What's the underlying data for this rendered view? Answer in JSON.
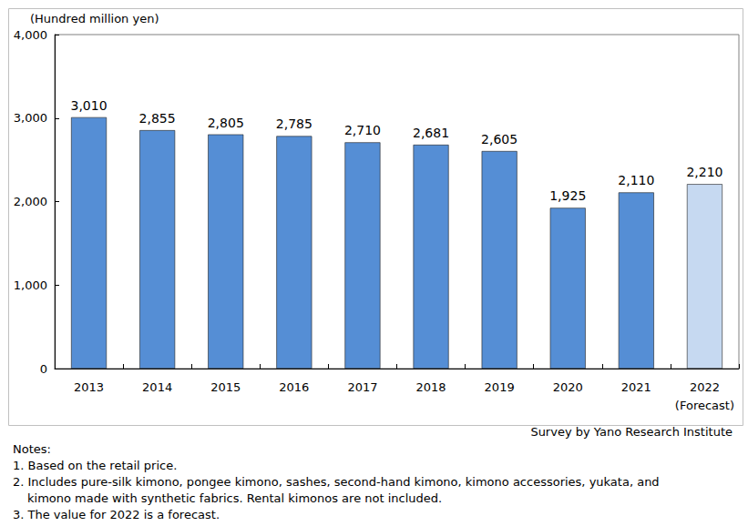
{
  "chart_data": {
    "type": "bar",
    "ylabel": "(Hundred million yen)",
    "categories": [
      "2013",
      "2014",
      "2015",
      "2016",
      "2017",
      "2018",
      "2019",
      "2020",
      "2021",
      "2022\n(Forecast)"
    ],
    "values": [
      3010,
      2855,
      2805,
      2785,
      2710,
      2681,
      2605,
      1925,
      2110,
      2210
    ],
    "value_labels": [
      "3,010",
      "2,855",
      "2,805",
      "2,785",
      "2,710",
      "2,681",
      "2,605",
      "1,925",
      "2,110",
      "2,210"
    ],
    "colors": [
      "#558ed5",
      "#558ed5",
      "#558ed5",
      "#558ed5",
      "#558ed5",
      "#558ed5",
      "#558ed5",
      "#558ed5",
      "#558ed5",
      "#c6d9f1"
    ],
    "ylim": [
      0,
      4000
    ],
    "yticks": [
      0,
      {
        "value": 1000,
        "label": "1,000"
      },
      {
        "value": 2000,
        "label": "2,000"
      },
      {
        "value": 3000,
        "label": "3,000"
      },
      {
        "value": 4000,
        "label": "4,000"
      }
    ],
    "grid": false,
    "data_labels": true,
    "source": "Survey by Yano Research Institute",
    "notes": [
      "Notes:",
      "1. Based on the retail price.",
      "2. Includes pure-silk kimono, pongee kimono, sashes, second-hand kimono, kimono accessories, yukata, and\nkimono made with synthetic fabrics. Rental kimonos are not included.",
      "3. The value for 2022 is a forecast."
    ]
  }
}
